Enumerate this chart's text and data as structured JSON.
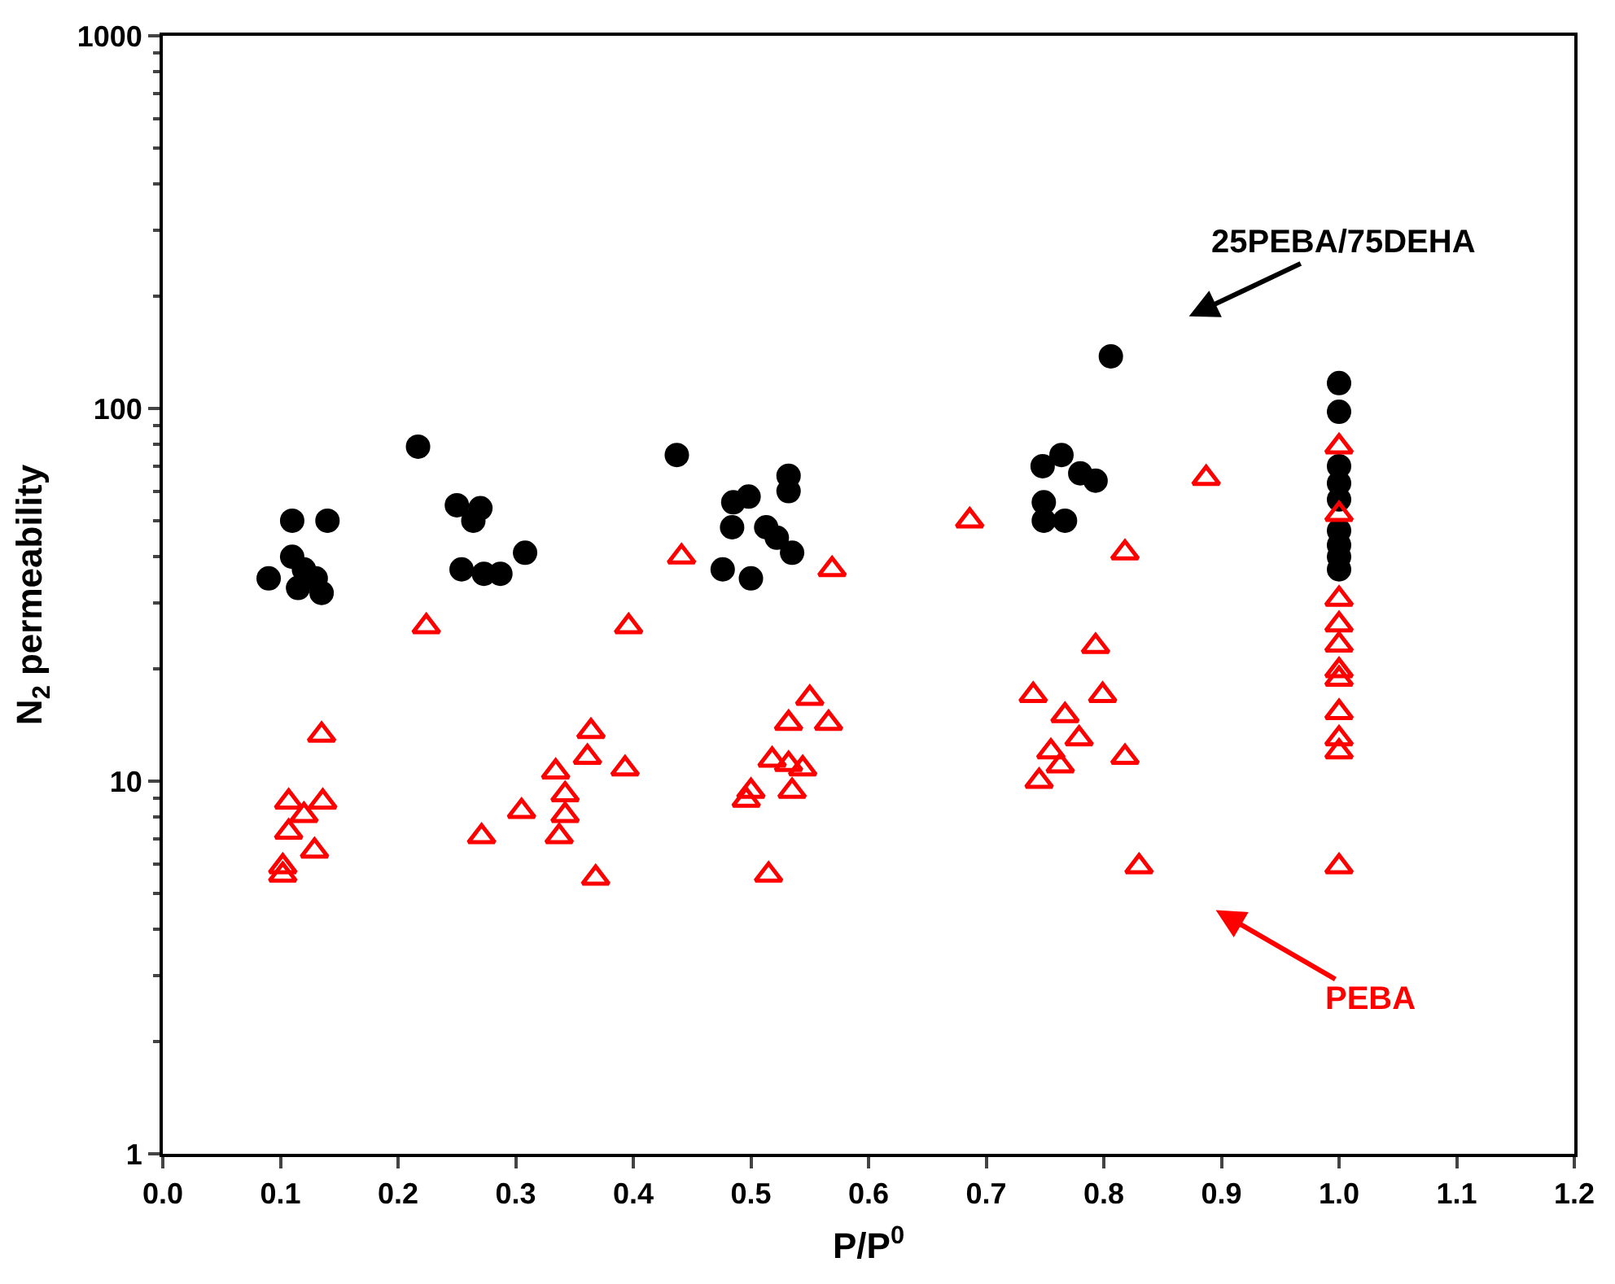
{
  "chart_data": {
    "type": "scatter",
    "xlabel": "P/P$^{0}$",
    "ylabel": "N$_{2}$ permeability",
    "log": "y",
    "xlim": [
      0,
      1.2
    ],
    "xticks": [
      {
        "value": 0,
        "label": "0.0"
      },
      {
        "value": 0.1,
        "label": "0.1"
      },
      {
        "value": 0.2,
        "label": "0.2"
      },
      {
        "value": 0.3,
        "label": "0.3"
      },
      {
        "value": 0.4,
        "label": "0.4"
      },
      {
        "value": 0.5,
        "label": "0.5"
      },
      {
        "value": 0.6,
        "label": "0.6"
      },
      {
        "value": 0.7,
        "label": "0.7"
      },
      {
        "value": 0.8,
        "label": "0.8"
      },
      {
        "value": 0.9,
        "label": "0.9"
      },
      {
        "value": 1,
        "label": "1.0"
      },
      {
        "value": 1.1,
        "label": "1.1"
      },
      {
        "value": 1.2,
        "label": "1.2"
      }
    ],
    "ylim": [
      1,
      1000
    ],
    "yticks": [
      1,
      10,
      100,
      1000
    ],
    "series": [
      {
        "color": "#000000",
        "marker": "circle",
        "x": [
          0.09,
          0.11,
          0.14,
          0.11,
          0.12,
          0.13,
          0.135,
          0.115,
          0.217,
          0.25,
          0.27,
          0.264,
          0.254,
          0.273,
          0.287,
          0.308,
          0.437,
          0.498,
          0.485,
          0.484,
          0.513,
          0.535,
          0.532,
          0.532,
          0.476,
          0.5,
          0.522,
          0.806,
          0.748,
          0.764,
          0.793,
          0.78,
          0.749,
          0.749,
          0.767,
          1,
          1,
          1,
          1,
          1,
          1,
          1,
          1,
          1
        ],
        "values": [
          35,
          50,
          50,
          40,
          37,
          35,
          32,
          33,
          79,
          55,
          54,
          50,
          37,
          36,
          36,
          41,
          75,
          58,
          56,
          48,
          48,
          41,
          66,
          60,
          37,
          35,
          45,
          138,
          70,
          75,
          64,
          67,
          56,
          50,
          50,
          117,
          98,
          70,
          63,
          57,
          47,
          43,
          40,
          37
        ]
      },
      {
        "color": "#ff0000",
        "marker": "triangle",
        "x": [
          0.135,
          0.224,
          0.396,
          0.107,
          0.136,
          0.12,
          0.107,
          0.129,
          0.102,
          0.102,
          0.271,
          0.305,
          0.334,
          0.364,
          0.361,
          0.393,
          0.342,
          0.342,
          0.337,
          0.368,
          0.441,
          0.569,
          0.686,
          0.55,
          0.532,
          0.566,
          0.518,
          0.532,
          0.544,
          0.535,
          0.5,
          0.496,
          0.515,
          0.887,
          0.818,
          0.793,
          0.74,
          0.799,
          0.767,
          0.779,
          0.755,
          0.763,
          0.818,
          0.745,
          0.83,
          1,
          1,
          1,
          1,
          1,
          1,
          1,
          1,
          1,
          1,
          1
        ],
        "values": [
          13.3,
          26,
          26,
          8.8,
          8.8,
          8.1,
          7.3,
          6.5,
          5.9,
          5.6,
          7.1,
          8.3,
          10.6,
          13.6,
          11.6,
          10.8,
          9.2,
          8.1,
          7.1,
          5.5,
          40,
          37,
          50,
          16.7,
          14.3,
          14.3,
          11.4,
          11.1,
          10.8,
          9.4,
          9.4,
          8.9,
          5.6,
          65,
          41,
          23,
          17,
          17,
          15,
          13,
          12,
          11,
          11.6,
          10,
          5.9,
          79,
          52,
          30.8,
          26.3,
          23.2,
          19.8,
          18.8,
          15.3,
          13,
          12,
          5.9
        ]
      }
    ],
    "annotations": [
      "25PEBA/75DEHA",
      "PEBA"
    ]
  }
}
